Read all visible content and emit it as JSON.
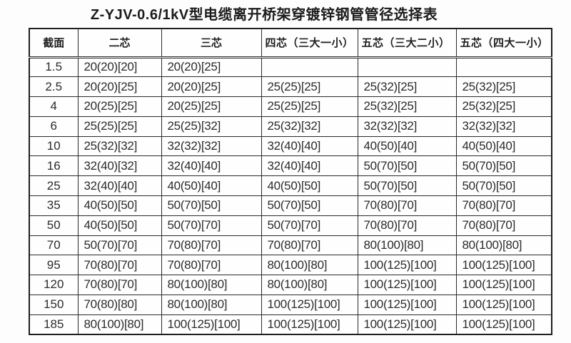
{
  "title": "Z-YJV-0.6/1kV型电缆离开桥架穿镀锌钢管管径选择表",
  "table": {
    "headers": [
      "截面",
      "二芯",
      "三芯",
      "四芯（三大一小）",
      "五芯（三大二小）",
      "五芯（四大一小）"
    ],
    "rows": [
      {
        "section": "1.5",
        "values": [
          "20(20)[20]",
          "20(20)[25]",
          "",
          "",
          ""
        ]
      },
      {
        "section": "2.5",
        "values": [
          "20(20)[25]",
          "20(20)[25]",
          "25(25)[25]",
          "25(32)[25]",
          "25(32)[25]"
        ]
      },
      {
        "section": "4",
        "values": [
          "20(25)[25]",
          "20(25)[25]",
          "25(25)[25]",
          "25(32)[25]",
          "25(32)[25]"
        ]
      },
      {
        "section": "6",
        "values": [
          "25(25)[25]",
          "25(25)[32]",
          "25(32)[32]",
          "32(32)[32]",
          "32(32)[32]"
        ]
      },
      {
        "section": "10",
        "values": [
          "25(32)[32]",
          "32(32)[32]",
          "32(40)[40]",
          "40(50)[40]",
          "40(50)[40]"
        ]
      },
      {
        "section": "16",
        "values": [
          "32(40)[32]",
          "32(40)[40]",
          "32(40)[40]",
          "50(70)[50]",
          "50(70)[50]"
        ]
      },
      {
        "section": "25",
        "values": [
          "32(40)[40]",
          "40(50)[40]",
          "40(50)[50]",
          "50(70)[50]",
          "50(70)[50]"
        ]
      },
      {
        "section": "35",
        "values": [
          "40(50)[50]",
          "50(70)[50]",
          "50(70)[50]",
          "70(80)[70]",
          "70(80)[70]"
        ]
      },
      {
        "section": "50",
        "values": [
          "40(50)[50]",
          "50(70)[70]",
          "50(70)[70]",
          "70(80)[70]",
          "70(80)[70]"
        ]
      },
      {
        "section": "70",
        "values": [
          "50(70)[70]",
          "70(80)[70]",
          "70(80)[70]",
          "80(100)[80]",
          "80(100)[80]"
        ]
      },
      {
        "section": "95",
        "values": [
          "70(80)[70]",
          "70(80)[70]",
          "80(100)[80]",
          "100(125)[100]",
          "100(125)[100]"
        ]
      },
      {
        "section": "120",
        "values": [
          "70(80)[70]",
          "80(100)[80]",
          "80(100)[80]",
          "100(125)[100]",
          "100(125)[100]"
        ]
      },
      {
        "section": "150",
        "values": [
          "70(80)[80]",
          "80(100)[80]",
          "100(125)[100]",
          "100(125)[100]",
          "100(125)[100]"
        ]
      },
      {
        "section": "185",
        "values": [
          "80(100)[80]",
          "100(125)[100]",
          "100(125)[100]",
          "100(125)[100]",
          "100(125)[100]"
        ]
      }
    ]
  }
}
